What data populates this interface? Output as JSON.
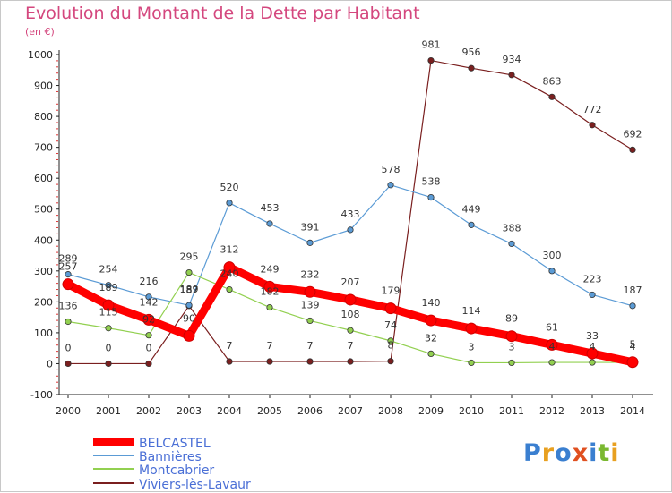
{
  "title": "Evolution du Montant de la Dette par Habitant",
  "subtitle": "(en €)",
  "logo": "Proxiti",
  "chart_data": {
    "type": "line",
    "title": "Evolution du Montant de la Dette par Habitant",
    "subtitle": "(en €)",
    "xlabel": "",
    "ylabel": "",
    "x": [
      "2000",
      "2001",
      "2002",
      "2003",
      "2004",
      "2005",
      "2006",
      "2007",
      "2008",
      "2009",
      "2010",
      "2011",
      "2012",
      "2013",
      "2014"
    ],
    "yticks": [
      "-100",
      "0",
      "100",
      "200",
      "300",
      "400",
      "500",
      "600",
      "700",
      "800",
      "900",
      "1000"
    ],
    "ylim": [
      -100,
      1000
    ],
    "grid": false,
    "legend_position": "bottom-left",
    "series": [
      {
        "name": "BELCASTEL",
        "color": "#ff0000",
        "values": [
          257,
          189,
          142,
          90,
          312,
          249,
          232,
          207,
          179,
          140,
          114,
          89,
          61,
          33,
          5
        ],
        "labels": [
          "257",
          "189",
          "142",
          "90",
          "312",
          "249",
          "232",
          "207",
          "179",
          "140",
          "114",
          "89",
          "61",
          "33",
          "5"
        ]
      },
      {
        "name": "Bannières",
        "color": "#5b9bd5",
        "values": [
          289,
          254,
          216,
          189,
          520,
          453,
          391,
          433,
          578,
          538,
          449,
          388,
          300,
          223,
          187
        ],
        "labels": [
          "289",
          "254",
          "216",
          "189",
          "520",
          "453",
          "391",
          "433",
          "578",
          "538",
          "449",
          "388",
          "300",
          "223",
          "187"
        ]
      },
      {
        "name": "Montcabrier",
        "color": "#92d050",
        "values": [
          136,
          115,
          92,
          295,
          240,
          182,
          139,
          108,
          74,
          32,
          3,
          3,
          4,
          4,
          4
        ],
        "labels": [
          "136",
          "115",
          "92",
          "295",
          "240",
          "182",
          "139",
          "108",
          "74",
          "32",
          "3",
          "3",
          "4",
          "4",
          "4"
        ]
      },
      {
        "name": "Viviers-lès-Lavaur",
        "color": "#7a1f1f",
        "values": [
          0,
          0,
          0,
          187,
          7,
          7,
          7,
          7,
          8,
          981,
          956,
          934,
          863,
          772,
          692
        ],
        "labels": [
          "0",
          "0",
          "0",
          "187",
          "7",
          "7",
          "7",
          "7",
          "8",
          "981",
          "956",
          "934",
          "863",
          "772",
          "692"
        ]
      }
    ]
  }
}
